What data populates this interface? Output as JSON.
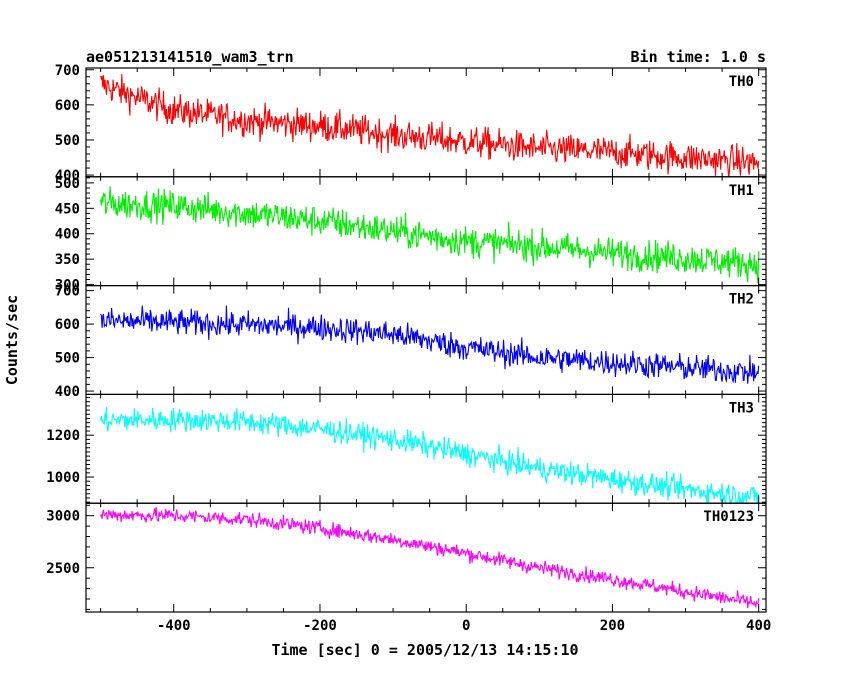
{
  "header": {
    "left_title": "ae051213141510_wam3_trn",
    "right_title": "Bin time: 1.0 s"
  },
  "chart_data": {
    "type": "line",
    "xlabel": "Time [sec] 0 = 2005/12/13 14:15:10",
    "ylabel": "Counts/sec",
    "xlim": [
      -520,
      410
    ],
    "xticks": [
      -400,
      -200,
      0,
      200,
      400
    ],
    "panels": [
      {
        "name": "TH0",
        "color": "#ff0000",
        "ylim": [
          395,
          705
        ],
        "yticks": [
          400,
          500,
          600,
          700
        ],
        "trend": [
          [
            -500,
            660
          ],
          [
            -450,
            620
          ],
          [
            -400,
            585
          ],
          [
            -300,
            555
          ],
          [
            -200,
            540
          ],
          [
            -100,
            515
          ],
          [
            0,
            495
          ],
          [
            100,
            475
          ],
          [
            200,
            465
          ],
          [
            300,
            450
          ],
          [
            400,
            435
          ]
        ],
        "noise": 32
      },
      {
        "name": "TH1",
        "color": "#00ee00",
        "ylim": [
          298,
          512
        ],
        "yticks": [
          300,
          350,
          400,
          450,
          500
        ],
        "trend": [
          [
            -500,
            460
          ],
          [
            -400,
            455
          ],
          [
            -300,
            440
          ],
          [
            -200,
            425
          ],
          [
            -100,
            405
          ],
          [
            0,
            385
          ],
          [
            100,
            375
          ],
          [
            200,
            362
          ],
          [
            300,
            352
          ],
          [
            400,
            340
          ]
        ],
        "noise": 22
      },
      {
        "name": "TH2",
        "color": "#0000ff",
        "ylim": [
          390,
          715
        ],
        "yticks": [
          400,
          500,
          600,
          700
        ],
        "trend": [
          [
            -500,
            610
          ],
          [
            -400,
            605
          ],
          [
            -300,
            598
          ],
          [
            -200,
            590
          ],
          [
            -100,
            570
          ],
          [
            0,
            530
          ],
          [
            100,
            500
          ],
          [
            200,
            485
          ],
          [
            300,
            470
          ],
          [
            400,
            455
          ]
        ],
        "noise": 28
      },
      {
        "name": "TH3",
        "color": "#00ffff",
        "ylim": [
          875,
          1395
        ],
        "yticks": [
          1000,
          1200
        ],
        "trend": [
          [
            -500,
            1270
          ],
          [
            -400,
            1275
          ],
          [
            -300,
            1265
          ],
          [
            -200,
            1230
          ],
          [
            -100,
            1180
          ],
          [
            0,
            1110
          ],
          [
            100,
            1040
          ],
          [
            200,
            990
          ],
          [
            300,
            940
          ],
          [
            400,
            905
          ]
        ],
        "noise": 40
      },
      {
        "name": "TH0123",
        "color": "#ff00ff",
        "ylim": [
          2075,
          3120
        ],
        "yticks": [
          2500,
          3000
        ],
        "trend": [
          [
            -500,
            3010
          ],
          [
            -400,
            3000
          ],
          [
            -300,
            2965
          ],
          [
            -200,
            2880
          ],
          [
            -100,
            2770
          ],
          [
            0,
            2640
          ],
          [
            100,
            2500
          ],
          [
            200,
            2390
          ],
          [
            300,
            2270
          ],
          [
            400,
            2155
          ]
        ],
        "noise": 50
      }
    ]
  }
}
